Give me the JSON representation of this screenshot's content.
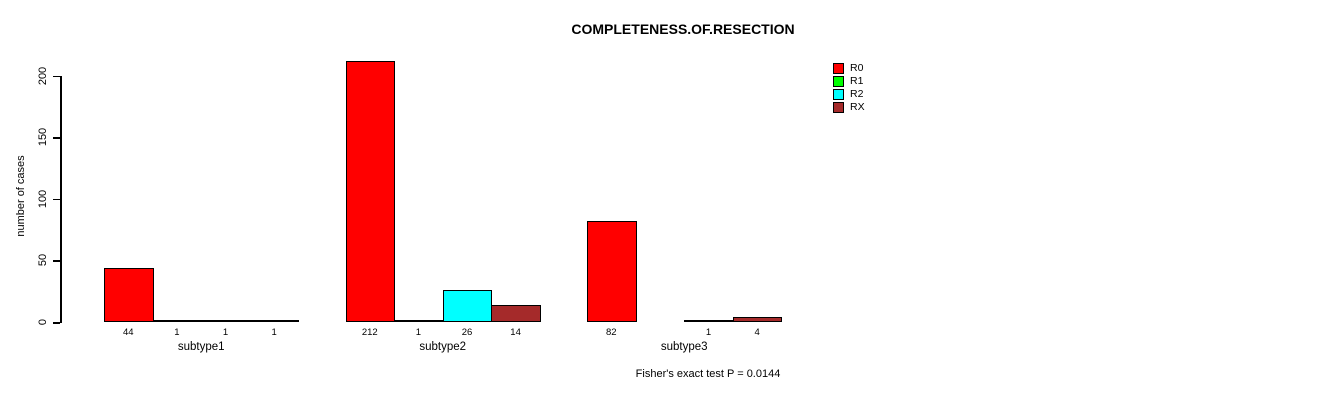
{
  "figure": {
    "title": "COMPLETENESS.OF.RESECTION",
    "ylabel": "number of cases",
    "annotation": "Fisher's exact test P = 0.0144"
  },
  "chart_data": {
    "type": "bar",
    "title": "COMPLETENESS.OF.RESECTION",
    "xlabel": "",
    "ylabel": "number of cases",
    "categories": [
      "subtype1",
      "subtype2",
      "subtype3"
    ],
    "series": [
      {
        "name": "R0",
        "color": "#ff0000",
        "values": [
          44,
          212,
          82
        ]
      },
      {
        "name": "R1",
        "color": "#00ff00",
        "values": [
          1,
          1,
          null
        ]
      },
      {
        "name": "R2",
        "color": "#00ffff",
        "values": [
          1,
          26,
          1
        ]
      },
      {
        "name": "RX",
        "color": "#a52a2a",
        "values": [
          1,
          14,
          4
        ]
      }
    ],
    "bar_value_labels": [
      [
        "44",
        "1",
        "1",
        "1"
      ],
      [
        "212",
        "1",
        "26",
        "14"
      ],
      [
        "82",
        "",
        "1",
        "4"
      ]
    ],
    "ylim": [
      0,
      200
    ],
    "yticks": [
      0,
      50,
      100,
      150,
      200
    ],
    "grid": false,
    "legend_position": "right",
    "annotation": "Fisher's exact test P = 0.0144"
  }
}
